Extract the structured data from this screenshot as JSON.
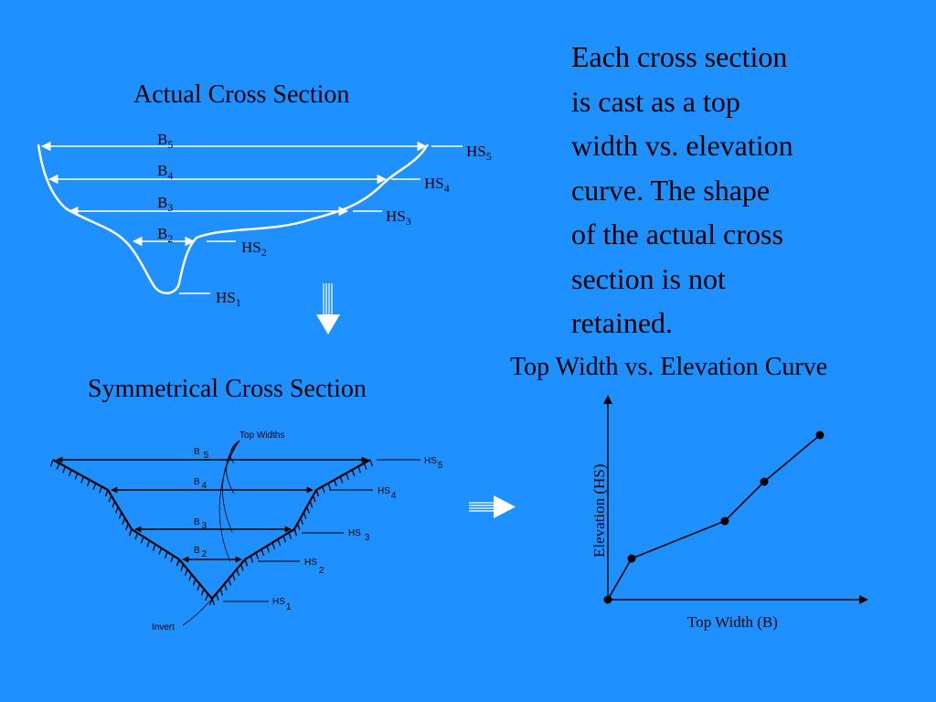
{
  "actual_section": {
    "title": "Actual Cross Section",
    "widths": [
      {
        "label": "B",
        "sub": "5"
      },
      {
        "label": "B",
        "sub": "4"
      },
      {
        "label": "B",
        "sub": "3"
      },
      {
        "label": "B",
        "sub": "2"
      }
    ],
    "heights": [
      {
        "label": "HS",
        "sub": "5"
      },
      {
        "label": "HS",
        "sub": "4"
      },
      {
        "label": "HS",
        "sub": "3"
      },
      {
        "label": "HS",
        "sub": "2"
      },
      {
        "label": "HS",
        "sub": "1"
      }
    ]
  },
  "symmetric_section": {
    "title": "Symmetrical Cross Section",
    "top_widths_label": "Top Widths",
    "invert_label": "Invert",
    "widths": [
      {
        "label": "B",
        "sub": "5"
      },
      {
        "label": "B",
        "sub": "4"
      },
      {
        "label": "B",
        "sub": "3"
      },
      {
        "label": "B",
        "sub": "2"
      }
    ],
    "heights": [
      {
        "label": "HS",
        "sub": "5"
      },
      {
        "label": "HS",
        "sub": "4"
      },
      {
        "label": "HS",
        "sub": "3"
      },
      {
        "label": "HS",
        "sub": "2"
      },
      {
        "label": "HS",
        "sub": "1"
      }
    ]
  },
  "description": {
    "lines": [
      "Each cross section",
      "is cast as a top",
      "width vs. elevation",
      "curve.  The shape",
      "of the actual cross",
      "section is not",
      "retained."
    ]
  },
  "curve": {
    "title": "Top Width vs. Elevation Curve",
    "xlabel": "Top Width (B)",
    "ylabel": "Elevation (HS)"
  },
  "colors": {
    "background": "#1e90ff",
    "line": "#ffffff",
    "ink": "#000000"
  }
}
